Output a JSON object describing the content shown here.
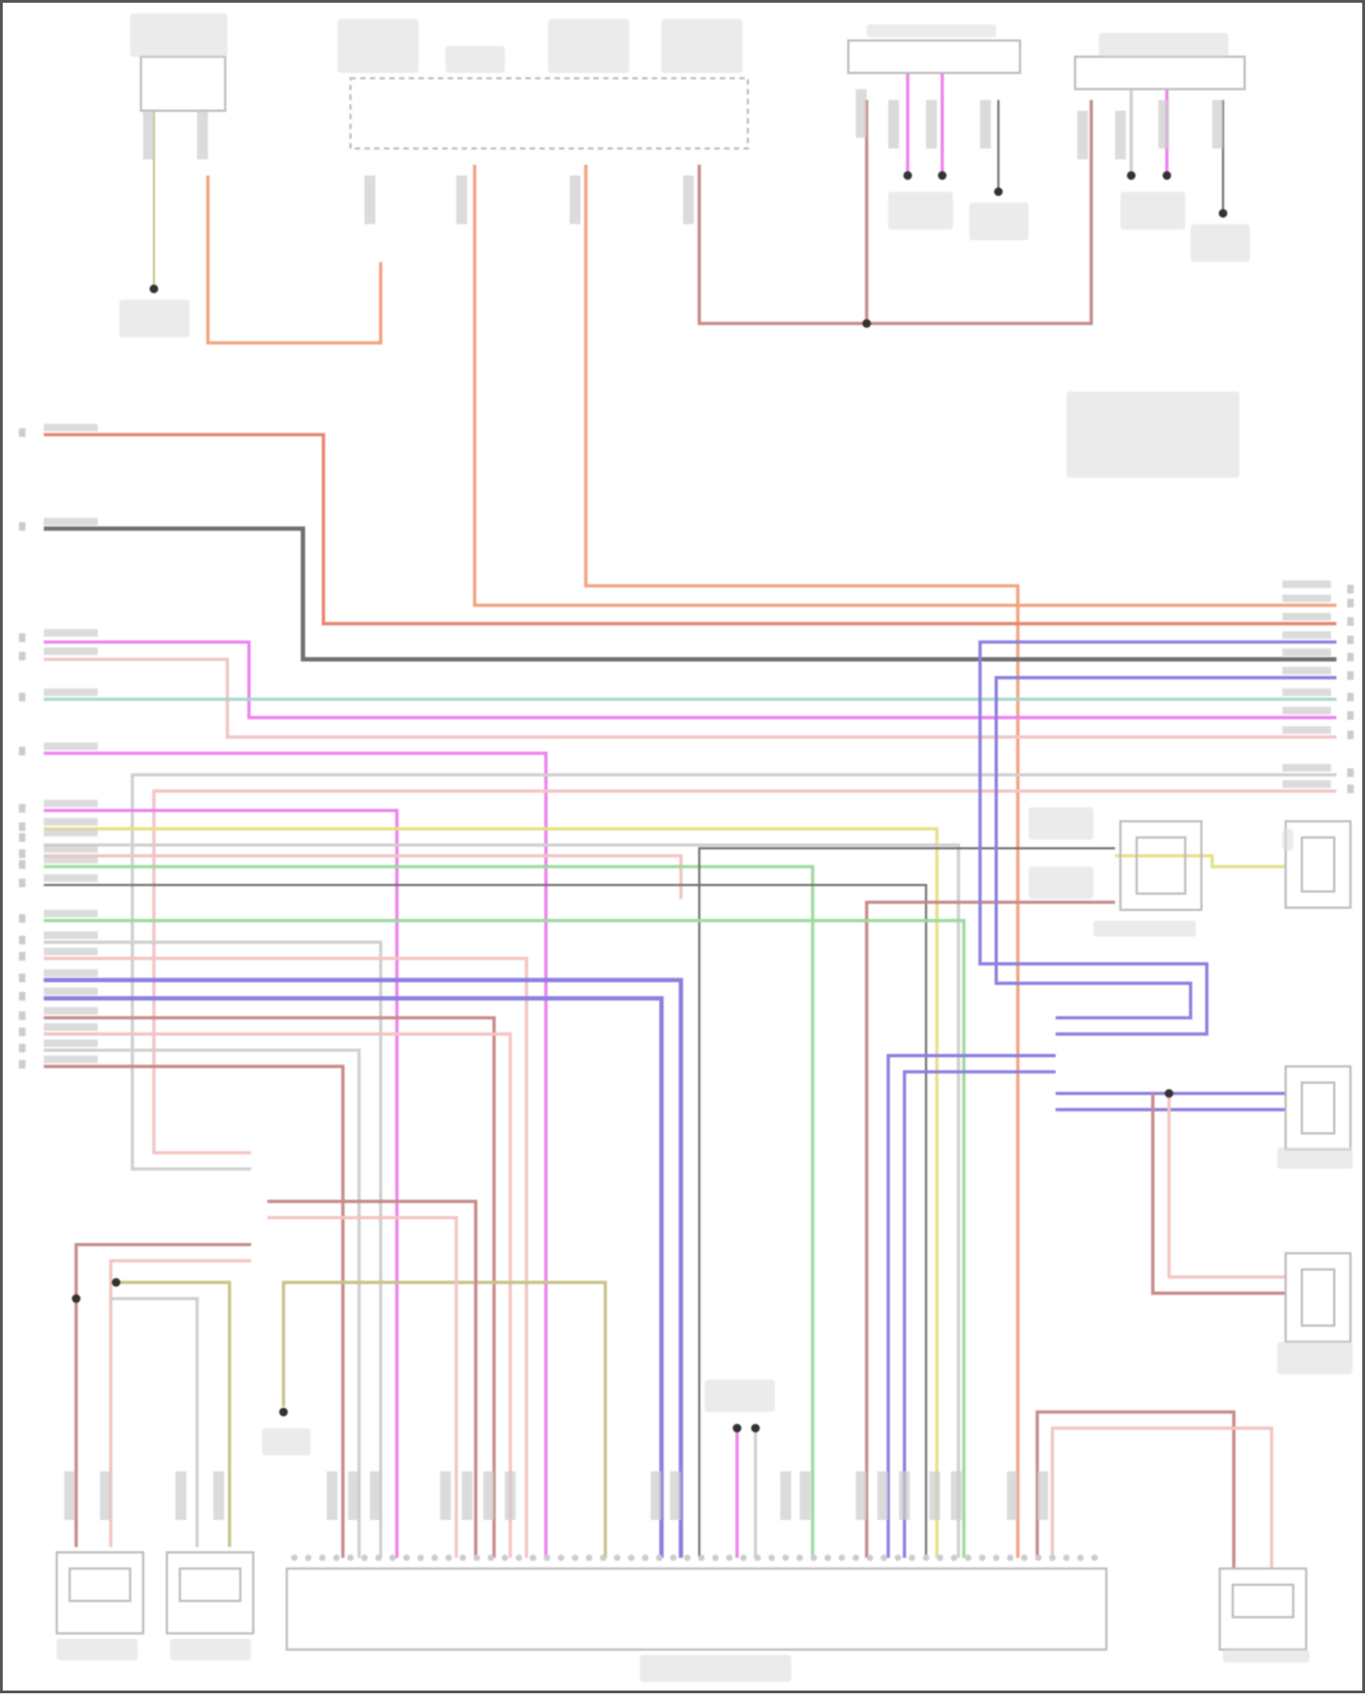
{
  "diagram": {
    "type": "wiring-diagram",
    "wire_colors": {
      "orange": "#f4a27c",
      "red": "#e8826e",
      "dark_gray": "#707070",
      "magenta": "#ee82ee",
      "light_pink": "#f3c4c4",
      "teal": "#a8d8cf",
      "red_brown": "#c88a8a",
      "yellow": "#e6e08a",
      "green": "#9edb9e",
      "purple": "#8c7fe0",
      "light_gray": "#d0d0d0",
      "olive": "#c8c48a"
    },
    "components": [
      {
        "id": "top-left-module",
        "icon": "module-icon"
      },
      {
        "id": "relay-block",
        "icon": "relay-icon"
      },
      {
        "id": "top-connector-1",
        "icon": "connector-icon"
      },
      {
        "id": "top-connector-2",
        "icon": "connector-icon"
      },
      {
        "id": "control-module",
        "icon": "module-icon"
      },
      {
        "id": "sensor-left-1",
        "icon": "sensor-icon"
      },
      {
        "id": "sensor-left-2",
        "icon": "sensor-icon"
      },
      {
        "id": "sensor-right-bottom",
        "icon": "sensor-icon"
      },
      {
        "id": "sensor-right-1",
        "icon": "sensor-icon"
      },
      {
        "id": "sensor-right-2",
        "icon": "sensor-icon"
      },
      {
        "id": "sensor-right-3",
        "icon": "sensor-icon"
      },
      {
        "id": "sensor-right-4",
        "icon": "sensor-icon"
      }
    ]
  }
}
